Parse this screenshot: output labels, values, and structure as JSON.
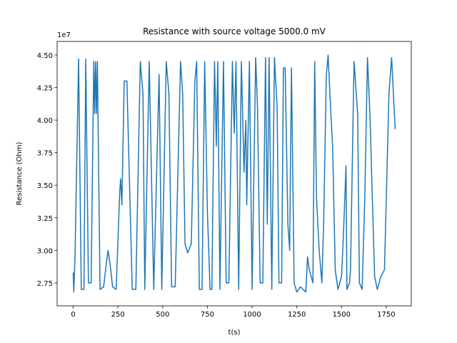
{
  "chart_data": {
    "type": "line",
    "title": "Resistance with source voltage 5000.0 mV",
    "x_label": "t(s)",
    "y_label": "Resistance (Ohm)",
    "y_offset_label": "1e7",
    "color": "#1f77b4",
    "xlim": [
      -90,
      1890
    ],
    "ylim": [
      2.574,
      4.604
    ],
    "xticks": [
      0,
      250,
      500,
      750,
      1000,
      1250,
      1500,
      1750
    ],
    "yticks": [
      {
        "value": 2.75,
        "label": "2.75"
      },
      {
        "value": 3.0,
        "label": "3.00"
      },
      {
        "value": 3.25,
        "label": "3.25"
      },
      {
        "value": 3.5,
        "label": "3.50"
      },
      {
        "value": 3.75,
        "label": "3.75"
      },
      {
        "value": 4.0,
        "label": "4.00"
      },
      {
        "value": 4.25,
        "label": "4.25"
      },
      {
        "value": 4.5,
        "label": "4.50"
      }
    ],
    "x": [
      0,
      3,
      10,
      30,
      45,
      60,
      70,
      85,
      100,
      115,
      120,
      125,
      130,
      135,
      150,
      170,
      185,
      195,
      210,
      220,
      240,
      260,
      265,
      272,
      285,
      300,
      330,
      350,
      375,
      390,
      400,
      425,
      450,
      480,
      495,
      520,
      535,
      550,
      570,
      600,
      612,
      625,
      640,
      660,
      680,
      690,
      705,
      720,
      735,
      750,
      765,
      775,
      790,
      800,
      808,
      820,
      840,
      855,
      870,
      890,
      900,
      910,
      925,
      940,
      955,
      965,
      970,
      985,
      1000,
      1020,
      1030,
      1045,
      1060,
      1075,
      1085,
      1095,
      1110,
      1125,
      1140,
      1150,
      1165,
      1175,
      1185,
      1200,
      1210,
      1220,
      1235,
      1250,
      1270,
      1300,
      1310,
      1320,
      1340,
      1350,
      1360,
      1375,
      1390,
      1400,
      1415,
      1425,
      1435,
      1450,
      1465,
      1480,
      1500,
      1510,
      1525,
      1530,
      1545,
      1550,
      1570,
      1590,
      1600,
      1615,
      1630,
      1645,
      1660,
      1670,
      1685,
      1700,
      1720,
      1740,
      1765,
      1780,
      1790,
      1800
    ],
    "values": [
      2.83,
      2.68,
      2.95,
      4.47,
      2.7,
      2.7,
      4.47,
      2.75,
      2.75,
      4.45,
      4.05,
      4.45,
      4.05,
      4.45,
      2.7,
      2.72,
      2.9,
      3.0,
      2.85,
      2.72,
      2.7,
      3.45,
      3.55,
      3.35,
      4.3,
      4.3,
      2.7,
      2.7,
      4.45,
      4.2,
      2.7,
      4.45,
      2.7,
      4.35,
      2.7,
      4.45,
      4.2,
      2.72,
      2.72,
      4.45,
      4.2,
      3.05,
      2.98,
      3.05,
      4.3,
      4.45,
      2.7,
      2.7,
      4.45,
      3.3,
      2.7,
      2.7,
      4.45,
      3.8,
      4.45,
      2.7,
      4.45,
      2.75,
      2.75,
      4.45,
      3.9,
      4.45,
      2.7,
      4.45,
      3.6,
      4.0,
      3.35,
      4.45,
      2.7,
      4.48,
      4.1,
      2.75,
      2.75,
      4.48,
      3.2,
      4.48,
      2.7,
      4.48,
      4.1,
      2.75,
      2.75,
      4.4,
      4.4,
      3.2,
      3.0,
      4.4,
      2.75,
      2.68,
      2.72,
      2.68,
      2.95,
      2.85,
      2.75,
      4.45,
      3.4,
      3.0,
      2.75,
      3.2,
      4.35,
      4.5,
      4.2,
      3.8,
      2.85,
      2.7,
      2.8,
      3.1,
      3.65,
      2.7,
      2.75,
      2.85,
      4.45,
      4.05,
      2.75,
      2.7,
      3.4,
      4.48,
      4.0,
      3.5,
      2.8,
      2.7,
      2.8,
      2.85,
      4.2,
      4.48,
      4.2,
      3.93
    ]
  }
}
